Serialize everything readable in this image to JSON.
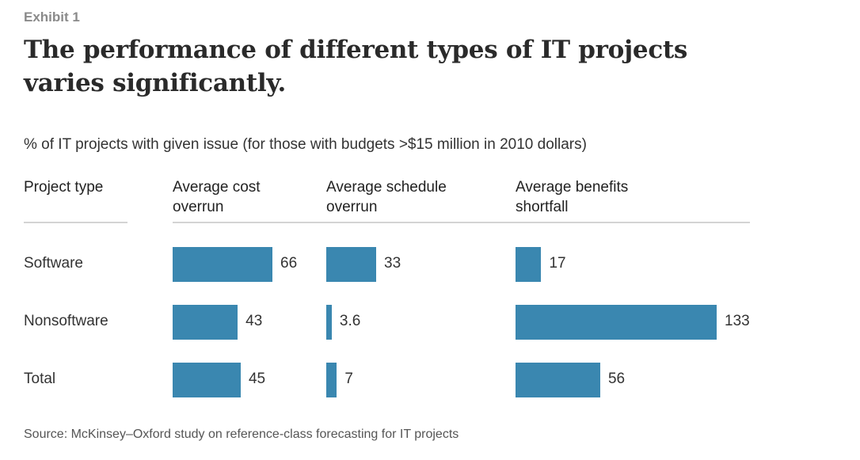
{
  "exhibit": "Exhibit 1",
  "title": "The performance of different types of IT projects varies significantly.",
  "subtitle": "% of IT projects with given issue (for those with budgets >$15 million in 2010 dollars)",
  "source": "Source: McKinsey–Oxford study on reference-class forecasting for IT projects",
  "colors": {
    "bar": "#3a87b0"
  },
  "chart_data": {
    "type": "bar",
    "orientation": "horizontal",
    "row_header": "Project type",
    "categories": [
      "Software",
      "Nonsoftware",
      "Total"
    ],
    "series": [
      {
        "name": "Average cost overrun",
        "values": [
          66,
          43,
          45
        ],
        "labels": [
          "66",
          "43",
          "45"
        ]
      },
      {
        "name": "Average schedule overrun",
        "values": [
          33,
          3.6,
          7
        ],
        "labels": [
          "33",
          "3.6",
          "7"
        ]
      },
      {
        "name": "Average benefits shortfall",
        "values": [
          17,
          133,
          56
        ],
        "labels": [
          "17",
          "133",
          "56"
        ]
      }
    ],
    "units": "%"
  }
}
